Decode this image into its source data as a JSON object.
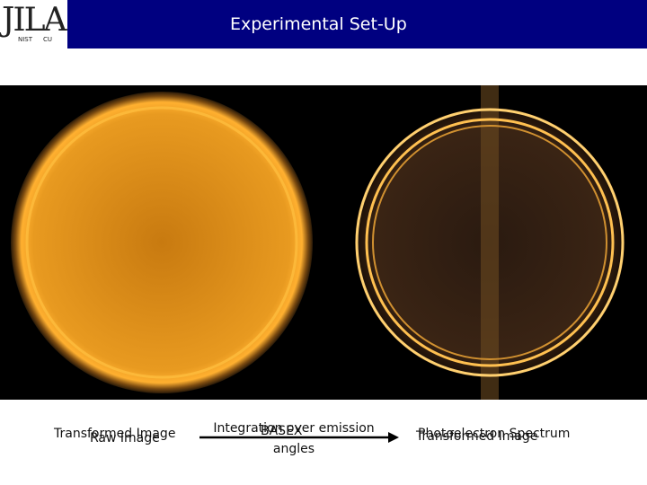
{
  "header": {
    "logo": "JILA",
    "logo_sub": [
      "NIST",
      "CU"
    ],
    "title": "Experimental Set-Up"
  },
  "captions": {
    "left": [
      "Transformed Image",
      "Raw Image"
    ],
    "middle": [
      "Integration over emission angles",
      "BASEX"
    ],
    "right": [
      "Photoelectron Spectrum",
      "Transformed Image"
    ]
  }
}
